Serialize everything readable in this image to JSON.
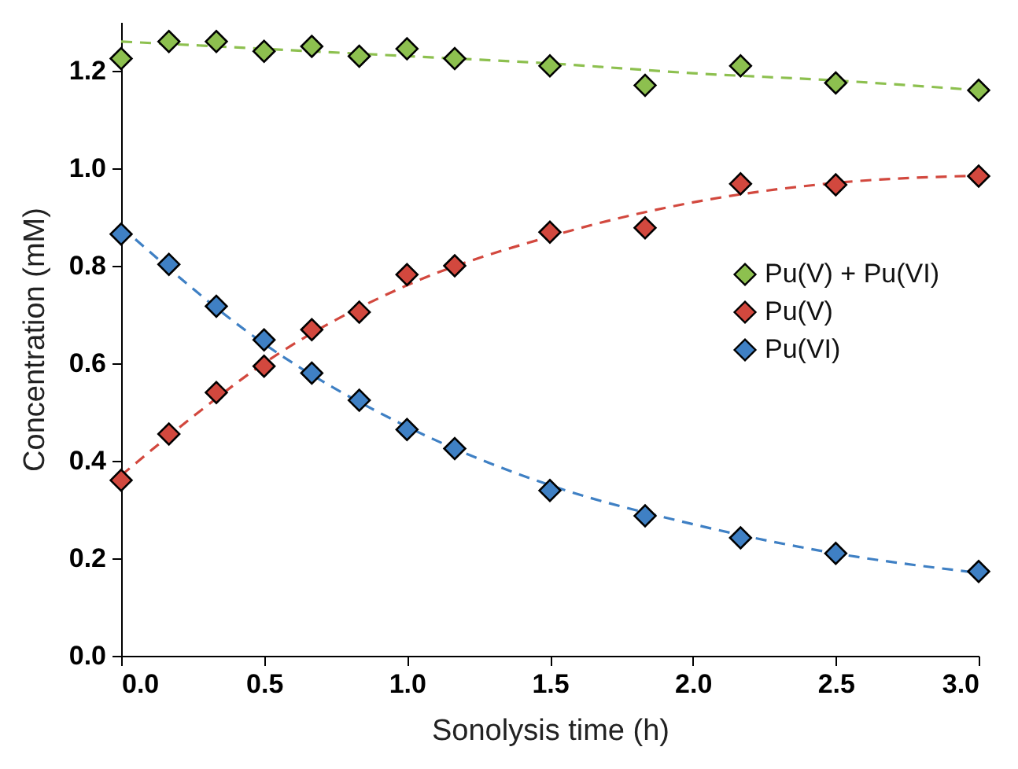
{
  "chart_data": {
    "type": "scatter",
    "xlabel": "Sonolysis time (h)",
    "ylabel": "Concentration (mM)",
    "x": [
      0,
      0.167,
      0.333,
      0.5,
      0.667,
      0.833,
      1.0,
      1.167,
      1.5,
      1.833,
      2.167,
      2.5,
      3.0
    ],
    "xlim": [
      0,
      3.0
    ],
    "xticks": [
      {
        "value": 0,
        "label": "0.0"
      },
      0.5,
      {
        "value": 1,
        "label": "1.0"
      },
      1.5,
      {
        "value": 2,
        "label": "2.0"
      },
      2.5,
      {
        "value": 3,
        "label": "3.0"
      }
    ],
    "ylim": [
      0,
      1.3
    ],
    "yticks": [
      {
        "value": 0,
        "label": "0.0"
      },
      0.2,
      0.4,
      0.6,
      0.8,
      {
        "value": 1,
        "label": "1.0"
      },
      1.2
    ],
    "grid": false,
    "legend": "right",
    "series": [
      {
        "name": "Pu(V) + Pu(VI)",
        "color": "#8dc04f",
        "marker": "diamond",
        "values": [
          1.225,
          1.26,
          1.26,
          1.24,
          1.25,
          1.23,
          1.245,
          1.225,
          1.21,
          1.17,
          1.21,
          1.175,
          1.16
        ]
      },
      {
        "name": "Pu(V)",
        "color": "#d2483e",
        "marker": "diamond",
        "values": [
          0.36,
          0.455,
          0.54,
          0.594,
          0.669,
          0.705,
          0.782,
          0.8,
          0.869,
          0.878,
          0.968,
          0.966,
          0.984
        ]
      },
      {
        "name": "Pu(VI)",
        "color": "#3f80c4",
        "marker": "diamond",
        "values": [
          0.865,
          0.803,
          0.717,
          0.648,
          0.58,
          0.524,
          0.464,
          0.425,
          0.339,
          0.287,
          0.242,
          0.21,
          0.173
        ]
      },
      {
        "type": "line",
        "color": "#8dc04f",
        "line_style": "dashed",
        "marker": "none",
        "x": [
          0,
          0.5,
          1.0,
          1.5,
          2.0,
          2.5,
          3.0
        ],
        "values": [
          1.26,
          1.245,
          1.23,
          1.215,
          1.195,
          1.18,
          1.16
        ]
      },
      {
        "type": "line",
        "color": "#d2483e",
        "line_style": "dashed",
        "marker": "none",
        "x": [
          0,
          0.25,
          0.5,
          1.0,
          1.5,
          2.0,
          2.5,
          3.0
        ],
        "values": [
          0.37,
          0.49,
          0.6,
          0.76,
          0.86,
          0.93,
          0.97,
          0.985
        ]
      },
      {
        "type": "line",
        "color": "#3f80c4",
        "line_style": "dashed",
        "marker": "none",
        "x": [
          0,
          0.5,
          1.0,
          1.5,
          2.0,
          2.5,
          3.0
        ],
        "values": [
          0.88,
          0.64,
          0.47,
          0.35,
          0.27,
          0.21,
          0.17
        ]
      }
    ]
  }
}
